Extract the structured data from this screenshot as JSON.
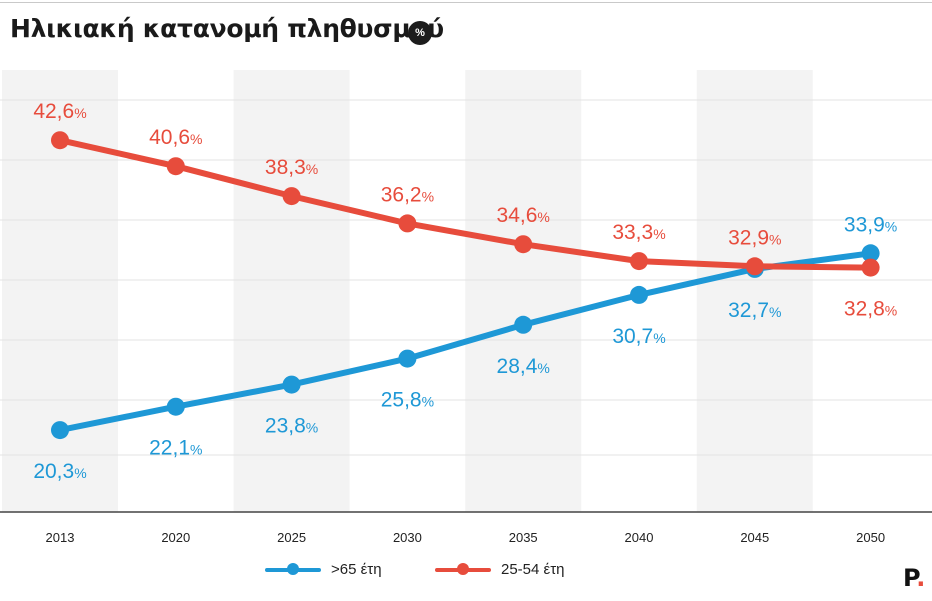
{
  "title": "Ηλικιακή κατανομή πληθυσμού",
  "unit_badge": "%",
  "logo": {
    "text": "P",
    "dot": "."
  },
  "colors": {
    "blue": "#1e98d6",
    "red": "#e74c3c",
    "band": "#f3f3f3",
    "grid": "#e3e3e3"
  },
  "chart_data": {
    "type": "line",
    "title": "Ηλικιακή κατανομή πληθυσμού",
    "xlabel": "",
    "ylabel": "",
    "ylim": [
      14,
      48
    ],
    "categories": [
      "2013",
      "2020",
      "2025",
      "2030",
      "2035",
      "2040",
      "2045",
      "2050"
    ],
    "series": [
      {
        "name": ">65 έτη",
        "color": "#1e98d6",
        "values": [
          20.3,
          22.1,
          23.8,
          25.8,
          28.4,
          30.7,
          32.7,
          33.9
        ],
        "labels": [
          "20,3",
          "22,1",
          "23,8",
          "25,8",
          "28,4",
          "30,7",
          "32,7",
          "33,9"
        ]
      },
      {
        "name": "25-54 έτη",
        "color": "#e74c3c",
        "values": [
          42.6,
          40.6,
          38.3,
          36.2,
          34.6,
          33.3,
          32.9,
          32.8
        ],
        "labels": [
          "42,6",
          "40,6",
          "38,3",
          "36,2",
          "34,6",
          "33,3",
          "32,9",
          "32,8"
        ]
      }
    ],
    "label_suffix": "%",
    "legend_position": "bottom"
  }
}
